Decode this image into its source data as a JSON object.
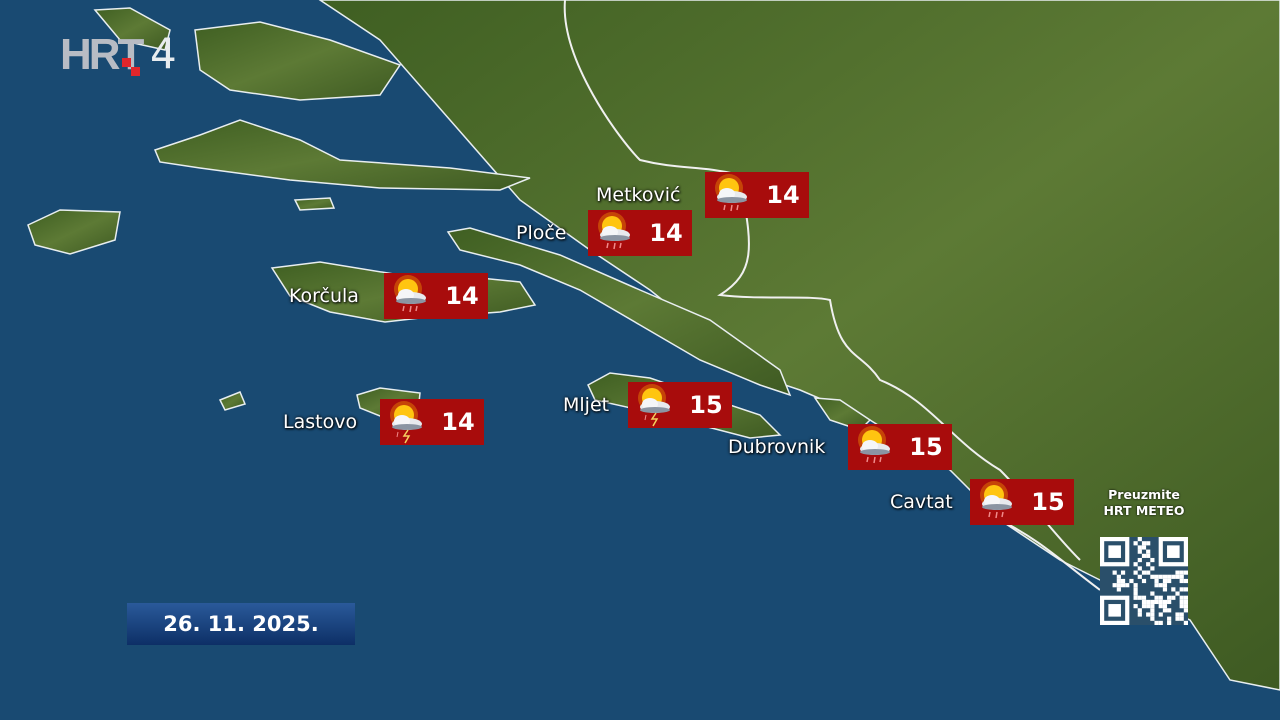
{
  "broadcaster": {
    "logo_text": "HRT",
    "channel": "4"
  },
  "date": "26. 11. 2025.",
  "promo": {
    "line1": "Preuzmite",
    "line2": "HRT METEO"
  },
  "colors": {
    "sea": "#194a72",
    "land": "#4d6a2a",
    "badge": "#a80c0c",
    "logo_red": "#e0262b"
  },
  "stations": [
    {
      "name": "Metković",
      "temp": "14",
      "icon": "sun-cloud-rain-icon"
    },
    {
      "name": "Ploče",
      "temp": "14",
      "icon": "sun-cloud-rain-icon"
    },
    {
      "name": "Korčula",
      "temp": "14",
      "icon": "sun-cloud-rain-icon"
    },
    {
      "name": "Lastovo",
      "temp": "14",
      "icon": "sun-cloud-thunder-icon"
    },
    {
      "name": "Mljet",
      "temp": "15",
      "icon": "sun-cloud-thunder-icon"
    },
    {
      "name": "Dubrovnik",
      "temp": "15",
      "icon": "sun-cloud-rain-icon"
    },
    {
      "name": "Cavtat",
      "temp": "15",
      "icon": "sun-cloud-rain-icon"
    }
  ]
}
